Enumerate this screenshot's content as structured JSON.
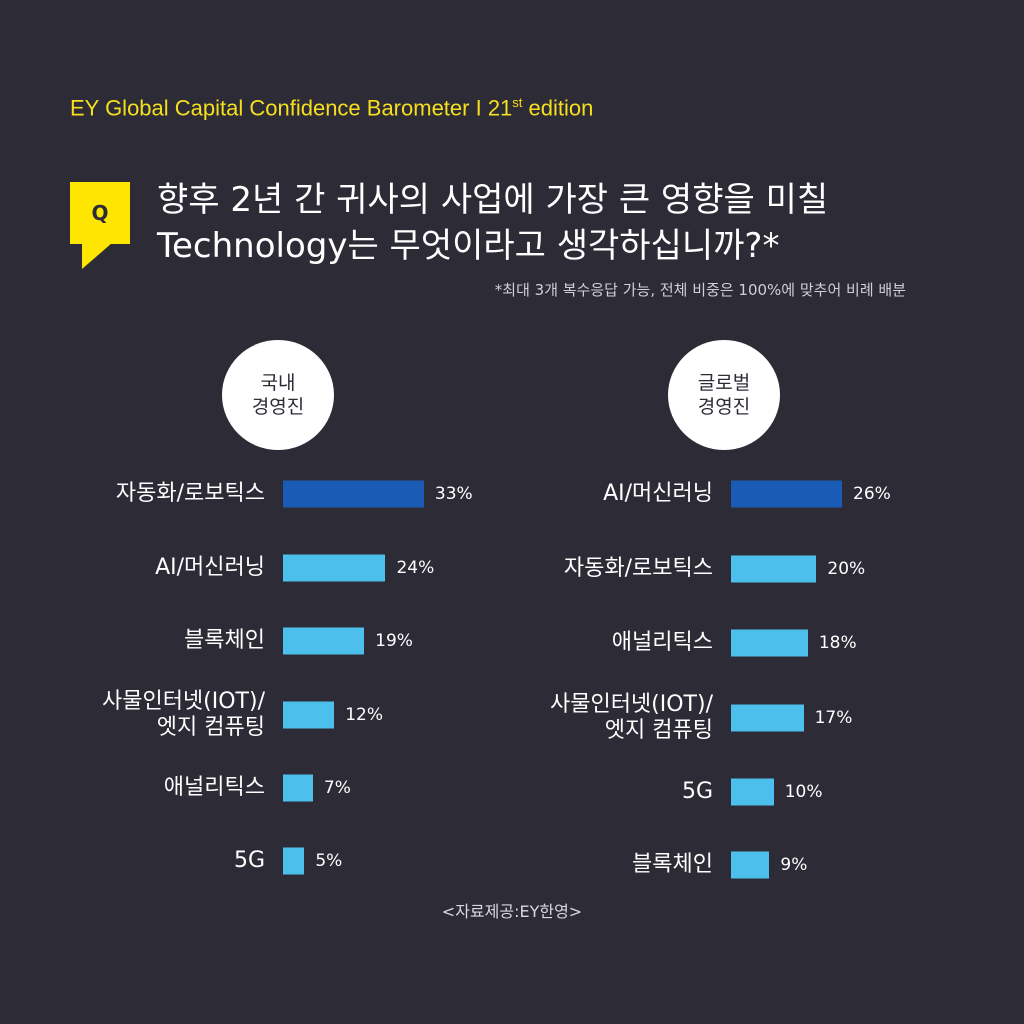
{
  "header": {
    "brand": "EY Global Capital Confidence Barometer I 21",
    "brand_sup": "st",
    "brand_suffix": " edition",
    "q_badge": "Q",
    "question_line1": "향후 2년 간 귀사의 사업에 가장 큰 영향을 미칠",
    "question_line2": "Technology는 무엇이라고 생각하십니까?*",
    "note": "*최대 3개 복수응답 가능, 전체 비중은 100%에 맞추어 비례 배분"
  },
  "colors": {
    "background": "#2d2c36",
    "accent_yellow": "#ffe600",
    "top_bar": "#1a5bb5",
    "other_bar": "#4dbfec"
  },
  "chart_data": [
    {
      "type": "bar",
      "orientation": "horizontal",
      "group_line1": "국내",
      "group_line2": "경영진",
      "categories": [
        "자동화/로보틱스",
        "AI/머신러닝",
        "블록체인",
        "사물인터넷(IOT)/\n엣지 컴퓨팅",
        "애널리틱스",
        "5G"
      ],
      "values": [
        33,
        24,
        19,
        12,
        7,
        5
      ],
      "labels": [
        "33%",
        "24%",
        "19%",
        "12%",
        "7%",
        "5%"
      ],
      "unit": "%"
    },
    {
      "type": "bar",
      "orientation": "horizontal",
      "group_line1": "글로벌",
      "group_line2": "경영진",
      "categories": [
        "AI/머신러닝",
        "자동화/로보틱스",
        "애널리틱스",
        "사물인터넷(IOT)/\n엣지 컴퓨팅",
        "5G",
        "블록체인"
      ],
      "values": [
        26,
        20,
        18,
        17,
        10,
        9
      ],
      "labels": [
        "26%",
        "20%",
        "18%",
        "17%",
        "10%",
        "9%"
      ],
      "unit": "%"
    }
  ],
  "source": "<자료제공:EY한영>"
}
